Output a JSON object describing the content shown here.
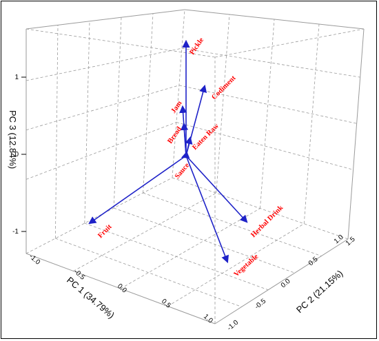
{
  "chart_data": {
    "type": "biplot-3d",
    "title": "",
    "axes": {
      "x": {
        "label": "PC 1 (34.79%)",
        "ticks": [
          "-1.0",
          "-0.5",
          "0.0",
          "0.5",
          "1.0"
        ],
        "range": [
          -1.0,
          1.0
        ]
      },
      "y": {
        "label": "PC 2 (21.15%)",
        "ticks": [
          "-1.0",
          "-0.5",
          "0.0",
          "0.5",
          "1.0",
          "1.5"
        ],
        "range": [
          -1.0,
          1.5
        ]
      },
      "z": {
        "label": "PC 3 (12.84%)",
        "ticks": [
          "-1",
          "0",
          "1"
        ],
        "range": [
          -1.2,
          1.5
        ]
      }
    },
    "grid": true,
    "vector_color": "#1e22c8",
    "label_color": "#ff0000",
    "vectors": [
      {
        "name": "Pickle",
        "pc1": 0.02,
        "pc2": 0.0,
        "pc3": 1.48
      },
      {
        "name": "Jam",
        "pc1": -0.02,
        "pc2": 0.0,
        "pc3": 0.62
      },
      {
        "name": "Bread",
        "pc1": -0.04,
        "pc2": -0.02,
        "pc3": 0.45
      },
      {
        "name": "Codiment",
        "pc1": -0.15,
        "pc2": 0.4,
        "pc3": 0.77
      },
      {
        "name": "Eaten Raw",
        "pc1": -0.05,
        "pc2": 0.05,
        "pc3": 0.22
      },
      {
        "name": "Sauce",
        "pc1": 0.05,
        "pc2": -0.05,
        "pc3": 0.0
      },
      {
        "name": "Fruit",
        "pc1": 0.1,
        "pc2": -1.3,
        "pc3": 0.05
      },
      {
        "name": "Vegetable",
        "pc1": 0.52,
        "pc2": 0.3,
        "pc3": 0.0
      },
      {
        "name": "Herbal Drink",
        "pc1": 0.28,
        "pc2": 0.78,
        "pc3": 0.0
      }
    ]
  }
}
